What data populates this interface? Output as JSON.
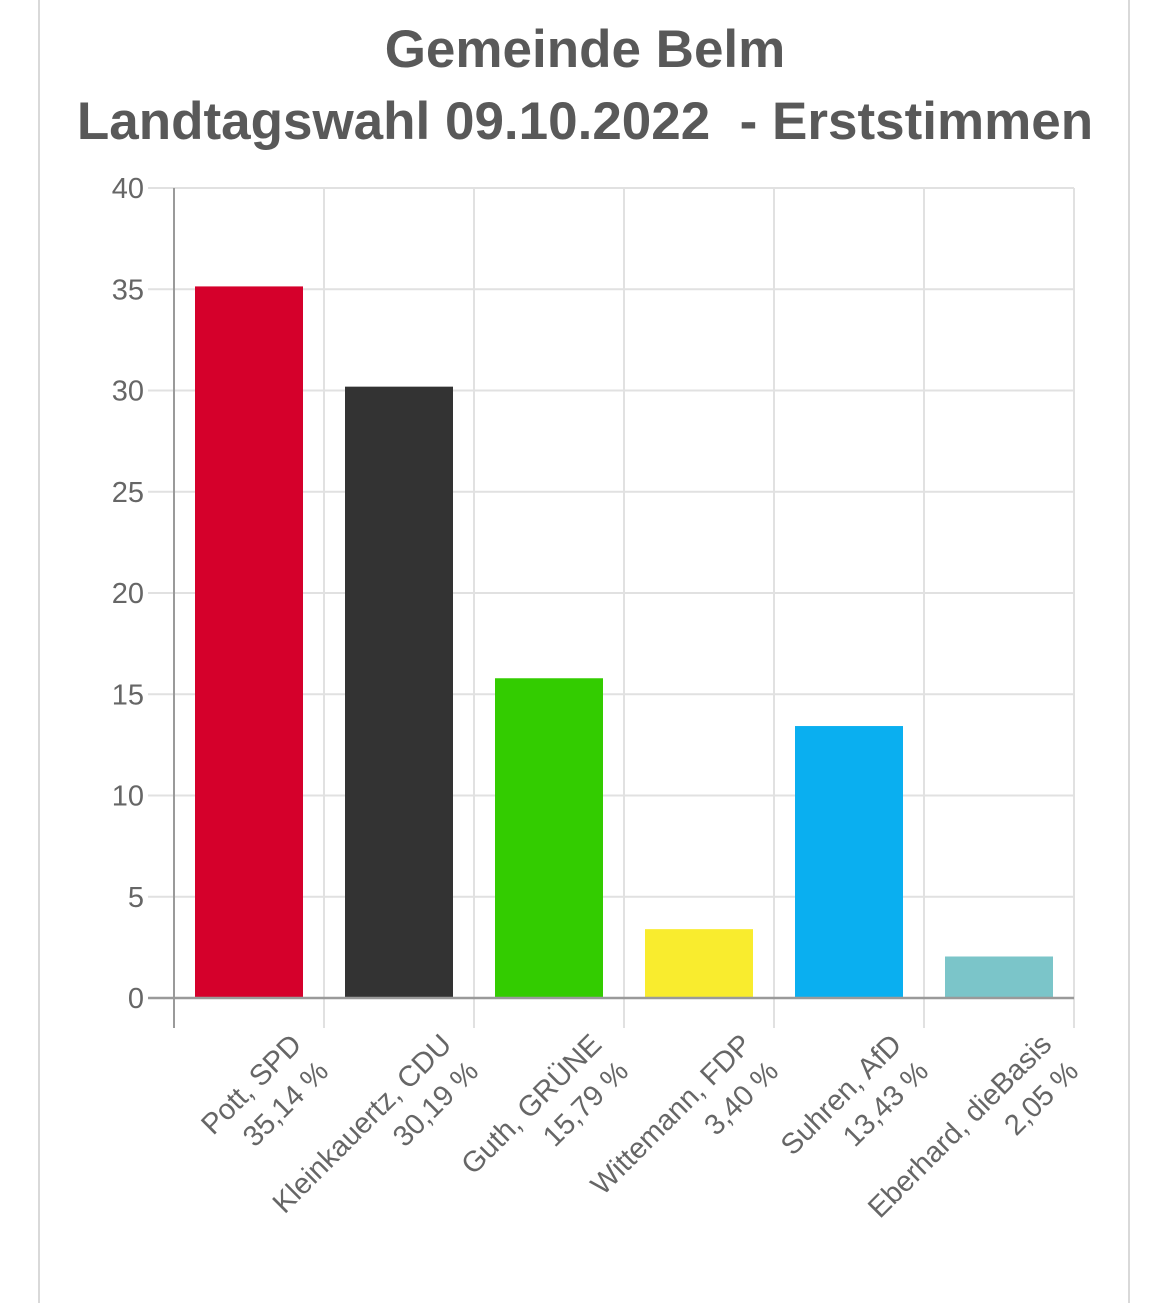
{
  "chart_data": {
    "type": "bar",
    "title": "Gemeinde Belm",
    "subtitle": "Landtagswahl 09.10.2022  - Erststimmen",
    "categories": [
      [
        "Pott, SPD",
        "35,14 %"
      ],
      [
        "Kleinkauertz, CDU",
        "30,19 %"
      ],
      [
        "Guth, GRÜNE",
        "15,79 %"
      ],
      [
        "Wittemann, FDP",
        "3,40 %"
      ],
      [
        "Suhren, AfD",
        "13,43 %"
      ],
      [
        "Eberhard, dieBasis",
        "2,05 %"
      ]
    ],
    "values": [
      35.14,
      30.19,
      15.79,
      3.4,
      13.43,
      2.05
    ],
    "colors": [
      "#d5002b",
      "#333333",
      "#33cc00",
      "#f9ec2e",
      "#0aaff0",
      "#7bc5c9"
    ],
    "ylim": [
      0,
      40
    ],
    "yticks": [
      "0",
      "5",
      "10",
      "15",
      "20",
      "25",
      "30",
      "35",
      "40"
    ],
    "grid": true,
    "xlabel": "",
    "ylabel": ""
  }
}
